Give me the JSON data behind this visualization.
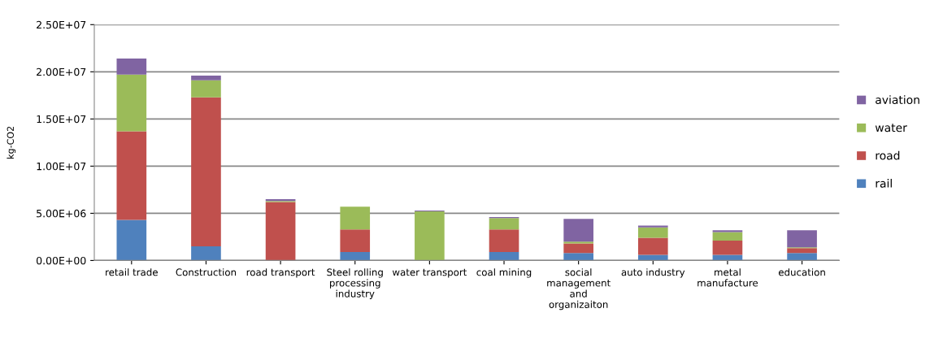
{
  "chart_data": {
    "type": "bar",
    "stacked": true,
    "ylabel": "kg-CO2",
    "categories": [
      "retail trade",
      "Construction",
      "road transport",
      "Steel rolling\nprocessing\nindustry",
      "water transport",
      "coal mining",
      "social\nmanagement\nand\norganizaiton",
      "auto industry",
      "metal\nmanufacture",
      "education"
    ],
    "series": [
      {
        "name": "rail",
        "color": "#4f81bd",
        "values": [
          4300000,
          1500000,
          null,
          900000,
          0,
          900000,
          800000,
          600000,
          600000,
          800000
        ]
      },
      {
        "name": "road",
        "color": "#c0504d",
        "values": [
          9400000,
          15800000,
          6200000,
          2400000,
          0,
          2400000,
          1000000,
          1800000,
          1500000,
          500000
        ]
      },
      {
        "name": "water",
        "color": "#9bbb59",
        "values": [
          6000000,
          1800000,
          100000,
          2400000,
          5200000,
          1200000,
          200000,
          1100000,
          900000,
          100000
        ]
      },
      {
        "name": "aviation",
        "color": "#8064a2",
        "values": [
          1700000,
          500000,
          200000,
          null,
          100000,
          100000,
          2400000,
          200000,
          200000,
          1800000
        ]
      }
    ],
    "ylim": [
      0,
      25000000
    ],
    "yticks": [
      {
        "value": 0,
        "label": "0.00E+00"
      },
      {
        "value": 5000000,
        "label": "5.00E+06"
      },
      {
        "value": 10000000,
        "label": "1.00E+07"
      },
      {
        "value": 15000000,
        "label": "1.50E+07"
      },
      {
        "value": 20000000,
        "label": "2.00E+07"
      },
      {
        "value": 25000000,
        "label": "2.50E+07"
      }
    ],
    "grid": "y",
    "legend": "right"
  }
}
